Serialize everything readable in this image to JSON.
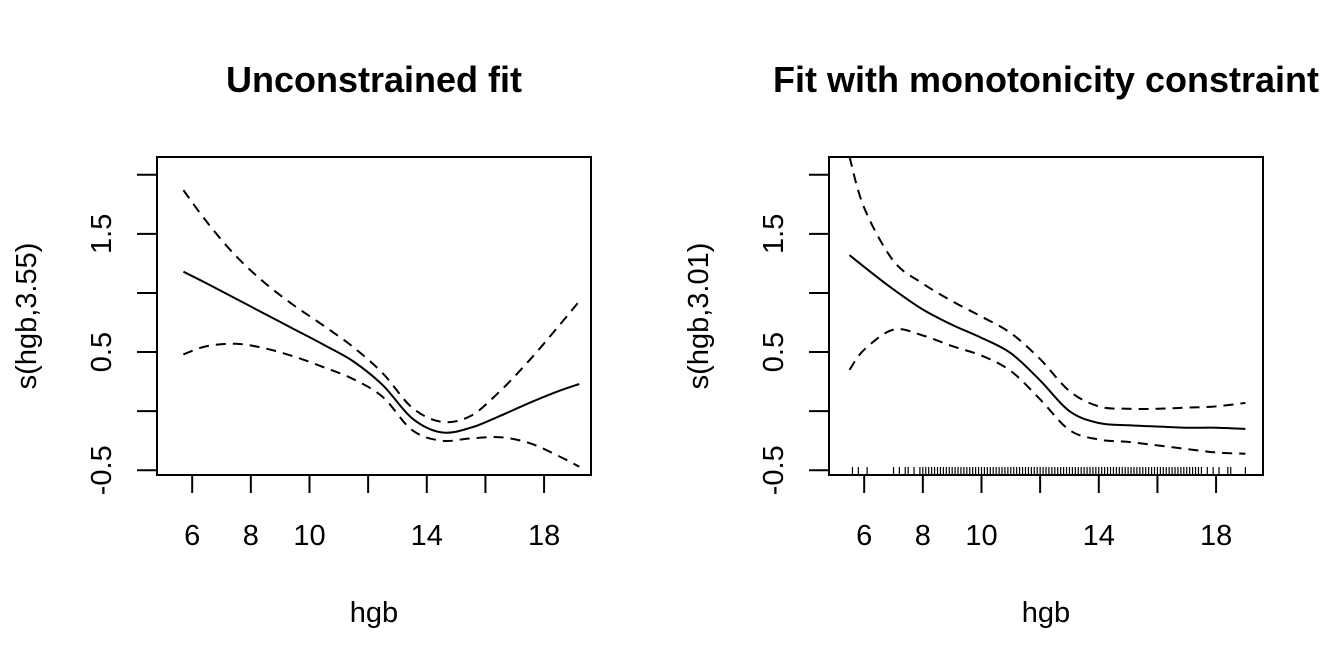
{
  "chart_data": [
    {
      "type": "line",
      "title": "Unconstrained fit",
      "xlabel": "hgb",
      "ylabel": "s(hgb,3.55)",
      "xlim": [
        4.8,
        19.6
      ],
      "ylim": [
        -0.54,
        2.15
      ],
      "xticks": [
        6,
        8,
        10,
        12,
        14,
        16,
        18
      ],
      "xtick_labels": [
        "6",
        "8",
        "10",
        "",
        "14",
        "",
        "18"
      ],
      "yticks": [
        -0.5,
        0,
        0.5,
        1,
        1.5,
        2
      ],
      "ytick_labels": [
        "-0.5",
        "",
        "0.5",
        "",
        "1.5",
        ""
      ],
      "x": [
        5.7,
        6.5,
        7.5,
        8.5,
        9.5,
        10.5,
        11.5,
        12.5,
        13.5,
        14.5,
        15.5,
        16.5,
        17.5,
        18.5,
        19.2
      ],
      "series": [
        {
          "values": [
            1.18,
            1.08,
            0.95,
            0.82,
            0.69,
            0.56,
            0.42,
            0.22,
            -0.06,
            -0.18,
            -0.14,
            -0.04,
            0.07,
            0.17,
            0.23
          ]
        },
        {
          "values": [
            1.87,
            1.6,
            1.31,
            1.08,
            0.89,
            0.72,
            0.54,
            0.32,
            0.03,
            -0.09,
            -0.04,
            0.17,
            0.43,
            0.72,
            0.93
          ]
        },
        {
          "values": [
            0.48,
            0.55,
            0.57,
            0.53,
            0.46,
            0.37,
            0.27,
            0.12,
            -0.16,
            -0.25,
            -0.23,
            -0.22,
            -0.27,
            -0.38,
            -0.47
          ]
        }
      ],
      "rug": []
    },
    {
      "type": "line",
      "title": "Fit with monotonicity constraint",
      "xlabel": "hgb",
      "ylabel": "s(hgb,3.01)",
      "xlim": [
        4.8,
        19.6
      ],
      "ylim": [
        -0.54,
        2.15
      ],
      "xticks": [
        6,
        8,
        10,
        12,
        14,
        16,
        18
      ],
      "xtick_labels": [
        "6",
        "8",
        "10",
        "",
        "14",
        "",
        "18"
      ],
      "yticks": [
        -0.5,
        0,
        0.5,
        1,
        1.5,
        2
      ],
      "ytick_labels": [
        "-0.5",
        "",
        "0.5",
        "",
        "1.5",
        ""
      ],
      "x": [
        5.5,
        6.0,
        7.0,
        8.0,
        9.0,
        10.0,
        11.0,
        12.0,
        13.0,
        14.0,
        15.0,
        16.0,
        17.0,
        18.0,
        19.0
      ],
      "series": [
        {
          "values": [
            1.32,
            1.22,
            1.03,
            0.86,
            0.73,
            0.62,
            0.49,
            0.26,
            0.0,
            -0.1,
            -0.12,
            -0.13,
            -0.14,
            -0.14,
            -0.15
          ]
        },
        {
          "values": [
            2.15,
            1.72,
            1.27,
            1.08,
            0.93,
            0.8,
            0.66,
            0.44,
            0.17,
            0.04,
            0.02,
            0.02,
            0.03,
            0.04,
            0.07
          ]
        },
        {
          "values": [
            0.35,
            0.52,
            0.69,
            0.64,
            0.55,
            0.47,
            0.34,
            0.1,
            -0.16,
            -0.24,
            -0.26,
            -0.29,
            -0.32,
            -0.35,
            -0.36
          ]
        }
      ],
      "rug": [
        5.6,
        5.8,
        6.1,
        7.0,
        7.2,
        7.4,
        7.5,
        7.7,
        7.9,
        8.0,
        8.1,
        8.2,
        8.3,
        8.4,
        8.5,
        8.6,
        8.7,
        8.8,
        8.9,
        9.0,
        9.1,
        9.2,
        9.3,
        9.4,
        9.5,
        9.6,
        9.7,
        9.8,
        9.9,
        10.0,
        10.1,
        10.2,
        10.3,
        10.4,
        10.5,
        10.6,
        10.7,
        10.8,
        10.9,
        11.0,
        11.1,
        11.2,
        11.3,
        11.4,
        11.5,
        11.6,
        11.7,
        11.8,
        11.9,
        12.0,
        12.1,
        12.2,
        12.3,
        12.4,
        12.5,
        12.6,
        12.7,
        12.8,
        12.9,
        13.0,
        13.1,
        13.2,
        13.3,
        13.4,
        13.5,
        13.6,
        13.7,
        13.8,
        13.9,
        14.0,
        14.1,
        14.2,
        14.3,
        14.4,
        14.5,
        14.6,
        14.7,
        14.8,
        14.9,
        15.0,
        15.1,
        15.2,
        15.3,
        15.4,
        15.5,
        15.6,
        15.7,
        15.8,
        15.9,
        16.0,
        16.1,
        16.2,
        16.3,
        16.4,
        16.5,
        16.6,
        16.7,
        16.8,
        16.9,
        17.0,
        17.1,
        17.2,
        17.3,
        17.4,
        17.5,
        17.7,
        17.9,
        18.1,
        18.4,
        18.5,
        19.0
      ]
    }
  ]
}
